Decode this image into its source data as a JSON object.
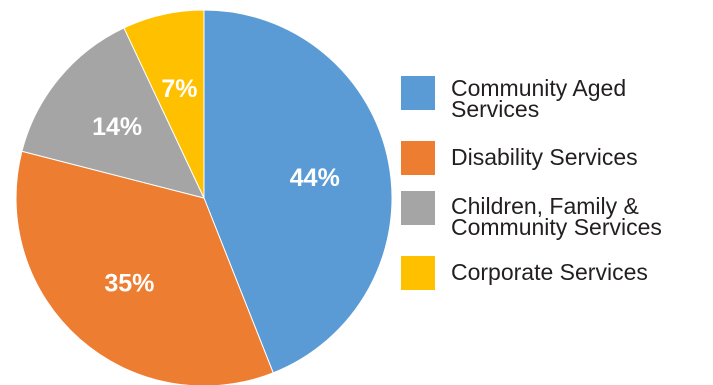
{
  "chart_data": {
    "type": "pie",
    "title": "",
    "legend_position": "right",
    "slices": [
      {
        "label": "Community Aged Services",
        "value": 44,
        "value_label": "44%",
        "color": "#5b9bd5"
      },
      {
        "label": "Disability Services",
        "value": 35,
        "value_label": "35%",
        "color": "#ed7d31"
      },
      {
        "label": "Children, Family & Community Services",
        "value": 14,
        "value_label": "14%",
        "color": "#a5a5a5"
      },
      {
        "label": "Corporate Services",
        "value": 7,
        "value_label": "7%",
        "color": "#ffc000"
      }
    ]
  }
}
